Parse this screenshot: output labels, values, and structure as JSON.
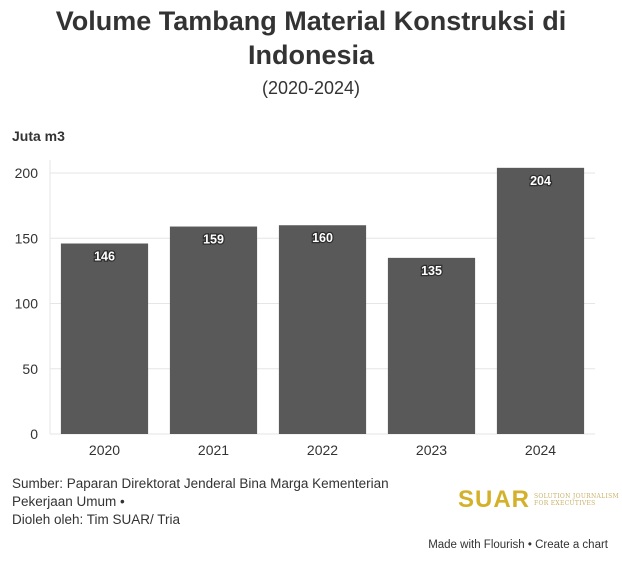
{
  "title": "Volume Tambang Material Konstruksi di Indonesia",
  "subtitle": "(2020-2024)",
  "chart_data": {
    "type": "bar",
    "title": "Volume Tambang Material Konstruksi di Indonesia",
    "subtitle": "(2020-2024)",
    "ylabel": "Juta m3",
    "xlabel": "",
    "categories": [
      "2020",
      "2021",
      "2022",
      "2023",
      "2024"
    ],
    "values": [
      146,
      159,
      160,
      135,
      204
    ],
    "data_labels": [
      "146",
      "159",
      "160",
      "135",
      "204"
    ],
    "ylim": [
      0,
      210
    ],
    "yticks": [
      0,
      50,
      100,
      150,
      200
    ],
    "grid": true,
    "bar_color": "#595959",
    "label_color": "#ffffff"
  },
  "source": {
    "line1": "Sumber: Paparan Direktorat Jenderal Bina Marga Kementerian",
    "line2": "Pekerjaan Umum •",
    "line3": "Dioleh oleh: Tim SUAR/ Tria"
  },
  "logo": {
    "word": "SUAR",
    "tagline1": "Solution Journalism",
    "tagline2": "for Executives",
    "color": "#d4b12a"
  },
  "footer": {
    "made_with": "Made with Flourish",
    "separator": " • ",
    "create": "Create a chart"
  }
}
